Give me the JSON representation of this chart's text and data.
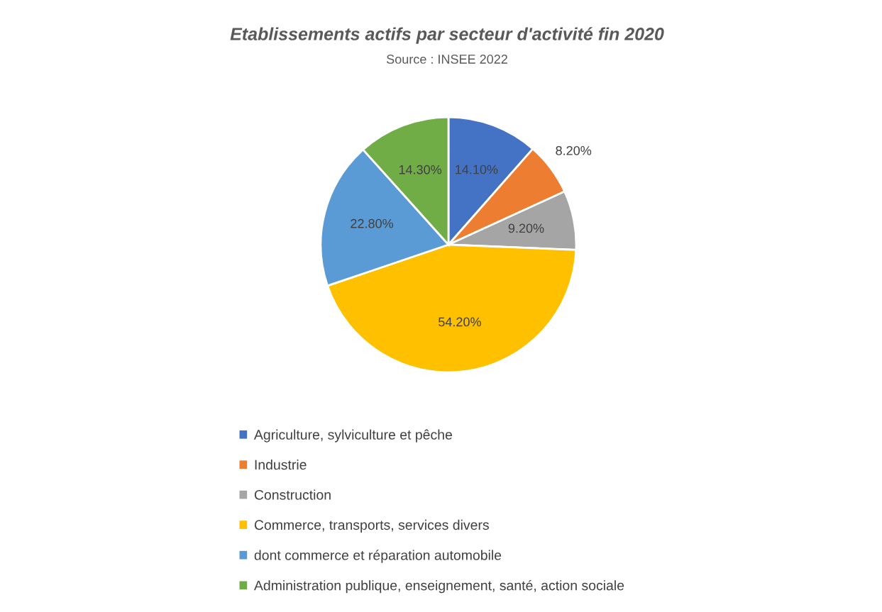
{
  "chart_data": {
    "type": "pie",
    "title": "Etablissements actifs par secteur d'activité fin 2020",
    "subtitle": "Source : INSEE 2022",
    "categories": [
      "Agriculture, sylviculture et pêche",
      "Industrie",
      "Construction",
      "Commerce, transports, services divers",
      "dont commerce et réparation automobile",
      "Administration publique, enseignement, santé, action sociale"
    ],
    "values": [
      14.1,
      8.2,
      9.2,
      54.2,
      22.8,
      14.3
    ],
    "value_labels": [
      "14.10%",
      "8.20%",
      "9.20%",
      "54.20%",
      "22.80%",
      "14.30%"
    ],
    "colors": [
      "#4472c4",
      "#ed7d31",
      "#a5a5a5",
      "#ffc000",
      "#5b9bd5",
      "#70ad47"
    ],
    "legend": "bottom"
  }
}
